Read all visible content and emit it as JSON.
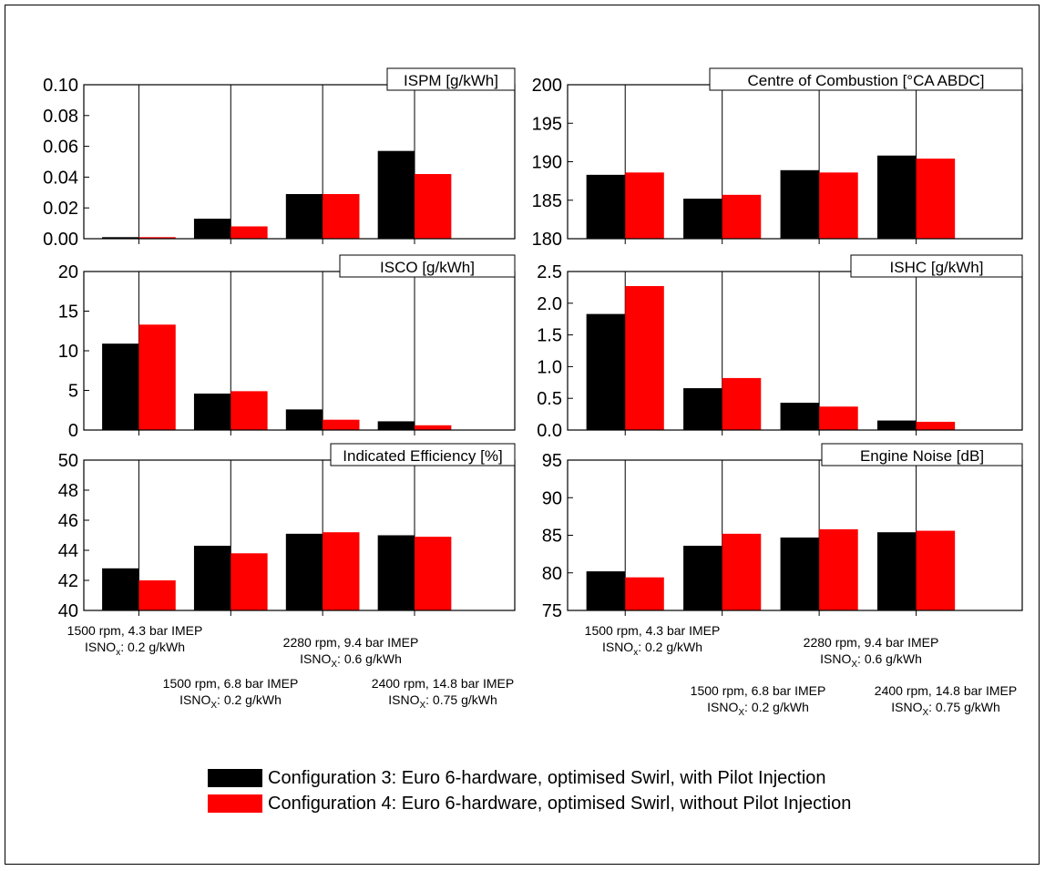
{
  "chart_data": [
    {
      "type": "bar",
      "title": "ISPM [g/kWh]",
      "ylim": [
        0,
        0.1
      ],
      "yticks": [
        "0.00",
        "0.02",
        "0.04",
        "0.06",
        "0.08",
        "0.10"
      ],
      "series": [
        {
          "name": "Configuration 3: Euro 6-hardware, optimised Swirl, with Pilot Injection",
          "values": [
            0.001,
            0.013,
            0.029,
            0.057
          ]
        },
        {
          "name": "Configuration 4: Euro 6-hardware, optimised Swirl, without Pilot Injection",
          "values": [
            0.001,
            0.008,
            0.029,
            0.042
          ]
        }
      ]
    },
    {
      "type": "bar",
      "title": "Centre of Combustion [°CA ABDC]",
      "ylim": [
        180,
        200
      ],
      "yticks": [
        "180",
        "185",
        "190",
        "195",
        "200"
      ],
      "series": [
        {
          "name": "Configuration 3: Euro 6-hardware, optimised Swirl, with Pilot Injection",
          "values": [
            188.3,
            185.2,
            188.9,
            190.8
          ]
        },
        {
          "name": "Configuration 4: Euro 6-hardware, optimised Swirl, without Pilot Injection",
          "values": [
            188.6,
            185.7,
            188.6,
            190.4
          ]
        }
      ]
    },
    {
      "type": "bar",
      "title": "ISCO [g/kWh]",
      "ylim": [
        0,
        20
      ],
      "yticks": [
        "0",
        "5",
        "10",
        "15",
        "20"
      ],
      "series": [
        {
          "name": "Configuration 3: Euro 6-hardware, optimised Swirl, with Pilot Injection",
          "values": [
            10.9,
            4.6,
            2.6,
            1.1
          ]
        },
        {
          "name": "Configuration 4: Euro 6-hardware, optimised Swirl, without Pilot Injection",
          "values": [
            13.3,
            4.9,
            1.3,
            0.6
          ]
        }
      ]
    },
    {
      "type": "bar",
      "title": "ISHC [g/kWh]",
      "ylim": [
        0,
        2.5
      ],
      "yticks": [
        "0.0",
        "0.5",
        "1.0",
        "1.5",
        "2.0",
        "2.5"
      ],
      "series": [
        {
          "name": "Configuration 3: Euro 6-hardware, optimised Swirl, with Pilot Injection",
          "values": [
            1.83,
            0.66,
            0.43,
            0.15
          ]
        },
        {
          "name": "Configuration 4: Euro 6-hardware, optimised Swirl, without Pilot Injection",
          "values": [
            2.27,
            0.82,
            0.37,
            0.13
          ]
        }
      ]
    },
    {
      "type": "bar",
      "title": "Indicated Efficiency [%]",
      "ylim": [
        40,
        50
      ],
      "yticks": [
        "40",
        "42",
        "44",
        "46",
        "48",
        "50"
      ],
      "series": [
        {
          "name": "Configuration 3: Euro 6-hardware, optimised Swirl, with Pilot Injection",
          "values": [
            42.8,
            44.3,
            45.1,
            45.0
          ]
        },
        {
          "name": "Configuration 4: Euro 6-hardware, optimised Swirl, without Pilot Injection",
          "values": [
            42.0,
            43.8,
            45.2,
            44.9
          ]
        }
      ]
    },
    {
      "type": "bar",
      "title": "Engine Noise [dB]",
      "ylim": [
        75,
        95
      ],
      "yticks": [
        "75",
        "80",
        "85",
        "90",
        "95"
      ],
      "series": [
        {
          "name": "Configuration 3: Euro 6-hardware, optimised Swirl, with Pilot Injection",
          "values": [
            80.2,
            83.6,
            84.7,
            85.4
          ]
        },
        {
          "name": "Configuration 4: Euro 6-hardware, optimised Swirl, without Pilot Injection",
          "values": [
            79.4,
            85.2,
            85.8,
            85.6
          ]
        }
      ]
    }
  ],
  "categories": [
    {
      "line1": "1500 rpm, 4.3 bar IMEP",
      "line2_prefix": "ISNO",
      "line2_sub": "x",
      "line2_suffix": ": 0.2 g/kWh"
    },
    {
      "line1": "1500 rpm, 6.8 bar IMEP",
      "line2_prefix": "ISNO",
      "line2_sub": "X",
      "line2_suffix": ": 0.2 g/kWh"
    },
    {
      "line1": "2280 rpm, 9.4 bar IMEP",
      "line2_prefix": "ISNO",
      "line2_sub": "X",
      "line2_suffix": ": 0.6 g/kWh"
    },
    {
      "line1": "2400 rpm, 14.8 bar IMEP",
      "line2_prefix": "ISNO",
      "line2_sub": "X",
      "line2_suffix": ": 0.75 g/kWh"
    }
  ],
  "legend": {
    "items": [
      {
        "label": "Configuration 3: Euro 6-hardware, optimised Swirl, with Pilot Injection",
        "color": "#000000"
      },
      {
        "label": "Configuration 4: Euro 6-hardware, optimised Swirl, without Pilot Injection",
        "color": "#ff0000"
      }
    ]
  },
  "colors": {
    "config3": "#000000",
    "config4": "#ff0000"
  }
}
